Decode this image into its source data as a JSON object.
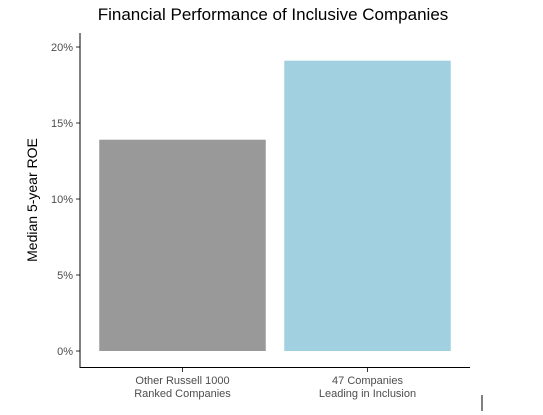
{
  "chart_data": {
    "type": "bar",
    "title": "Financial Performance of Inclusive Companies",
    "ylabel": "Median 5-year ROE",
    "xlabel": "",
    "ylim": [
      0,
      20
    ],
    "yticks": [
      0,
      5,
      10,
      15,
      20
    ],
    "ytick_labels": [
      "0%",
      "5%",
      "10%",
      "15%",
      "20%"
    ],
    "categories": [
      [
        "Other Russell 1000",
        "Ranked Companies"
      ],
      [
        "47 Companies",
        "Leading in Inclusion"
      ]
    ],
    "values": [
      13.9,
      19.1
    ],
    "colors": [
      "#999999",
      "#a1d1e0"
    ],
    "grid": false,
    "legend": "none"
  }
}
